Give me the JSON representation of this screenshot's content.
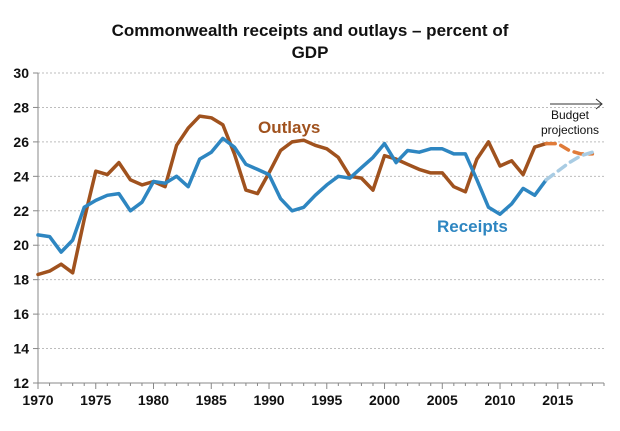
{
  "chart_data": {
    "type": "line",
    "title_line1": "Commonwealth receipts and outlays – percent of",
    "title_line2": "GDP",
    "xlabel": "",
    "ylabel": "",
    "xlim": [
      1970,
      2019
    ],
    "ylim": [
      12,
      30
    ],
    "x_ticks": [
      1970,
      1975,
      1980,
      1985,
      1990,
      1995,
      2000,
      2005,
      2010,
      2015
    ],
    "y_ticks": [
      12,
      14,
      16,
      18,
      20,
      22,
      24,
      26,
      28,
      30
    ],
    "grid": "horizontal-dotted",
    "colors": {
      "outlays": "#A0521E",
      "receipts": "#2E86C1",
      "outlays_proj": "#E07B39",
      "receipts_proj": "#A9CCE3"
    },
    "annotation": {
      "line1": "Budget",
      "line2": "projections"
    },
    "series": [
      {
        "name": "Outlays",
        "x": [
          1970,
          1971,
          1972,
          1973,
          1974,
          1975,
          1976,
          1977,
          1978,
          1979,
          1980,
          1981,
          1982,
          1983,
          1984,
          1985,
          1986,
          1987,
          1988,
          1989,
          1990,
          1991,
          1992,
          1993,
          1994,
          1995,
          1996,
          1997,
          1998,
          1999,
          2000,
          2001,
          2002,
          2003,
          2004,
          2005,
          2006,
          2007,
          2008,
          2009,
          2010,
          2011,
          2012,
          2013,
          2014
        ],
        "values": [
          18.3,
          18.5,
          18.9,
          18.4,
          21.5,
          24.3,
          24.1,
          24.8,
          23.8,
          23.5,
          23.7,
          23.4,
          25.8,
          26.8,
          27.5,
          27.4,
          27.0,
          25.3,
          23.2,
          23.0,
          24.2,
          25.5,
          26.0,
          26.1,
          25.8,
          25.6,
          25.1,
          24.0,
          23.9,
          23.2,
          25.2,
          25.0,
          24.7,
          24.4,
          24.2,
          24.2,
          23.4,
          23.1,
          25.0,
          26.0,
          24.6,
          24.9,
          24.1,
          25.7,
          25.9
        ]
      },
      {
        "name": "Outlays projection",
        "x": [
          2014,
          2015,
          2016,
          2017,
          2018
        ],
        "values": [
          25.9,
          25.9,
          25.5,
          25.3,
          25.3
        ]
      },
      {
        "name": "Receipts",
        "x": [
          1970,
          1971,
          1972,
          1973,
          1974,
          1975,
          1976,
          1977,
          1978,
          1979,
          1980,
          1981,
          1982,
          1983,
          1984,
          1985,
          1986,
          1987,
          1988,
          1989,
          1990,
          1991,
          1992,
          1993,
          1994,
          1995,
          1996,
          1997,
          1998,
          1999,
          2000,
          2001,
          2002,
          2003,
          2004,
          2005,
          2006,
          2007,
          2008,
          2009,
          2010,
          2011,
          2012,
          2013,
          2014
        ],
        "values": [
          20.6,
          20.5,
          19.6,
          20.3,
          22.2,
          22.6,
          22.9,
          23.0,
          22.0,
          22.5,
          23.7,
          23.6,
          24.0,
          23.4,
          25.0,
          25.4,
          26.2,
          25.7,
          24.7,
          24.4,
          24.1,
          22.7,
          22.0,
          22.2,
          22.9,
          23.5,
          24.0,
          23.9,
          24.5,
          25.1,
          25.9,
          24.8,
          25.5,
          25.4,
          25.6,
          25.6,
          25.3,
          25.3,
          23.8,
          22.2,
          21.8,
          22.4,
          23.3,
          22.9,
          23.8
        ]
      },
      {
        "name": "Receipts projection",
        "x": [
          2014,
          2015,
          2016,
          2017,
          2018
        ],
        "values": [
          23.8,
          24.3,
          24.8,
          25.2,
          25.4
        ]
      }
    ],
    "series_labels": {
      "outlays": "Outlays",
      "receipts": "Receipts"
    }
  }
}
